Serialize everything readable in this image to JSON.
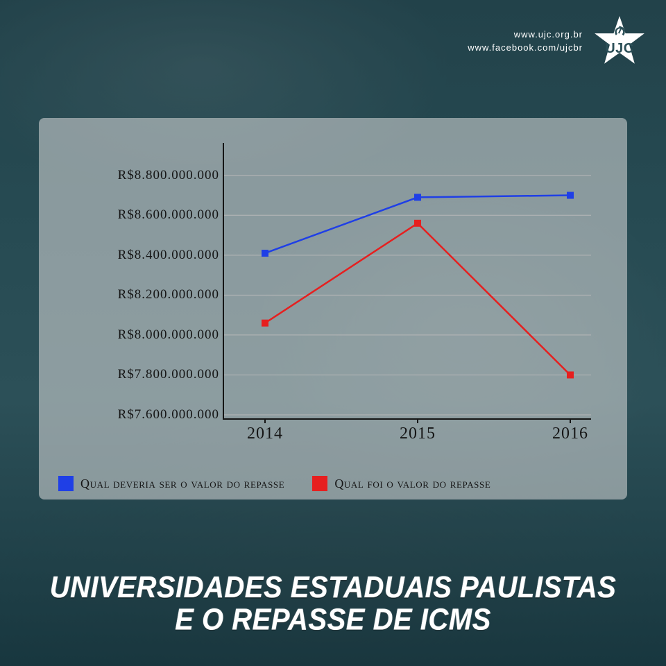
{
  "header": {
    "url1": "www.ujc.org.br",
    "url2": "www.facebook.com/ujcbr",
    "logo_text": "UJC",
    "logo_star_color": "#ffffff",
    "logo_symbol_color": "#2c5058"
  },
  "chart": {
    "type": "line",
    "plot_background": "rgba(220,220,220,0.55)",
    "axis_color": "#151515",
    "grid_color": "#b8b8b8",
    "label_color": "#151515",
    "tick_fontsize": 19,
    "xlabel_fontsize": 24,
    "marker_size": 10,
    "line_width": 2.5,
    "ymin": 7600000000,
    "ymax": 8900000000,
    "yticks": [
      {
        "v": 7600000000,
        "label": "R$7.600.000.000"
      },
      {
        "v": 7800000000,
        "label": "R$7.800.000.000"
      },
      {
        "v": 8000000000,
        "label": "R$8.000.000.000"
      },
      {
        "v": 8200000000,
        "label": "R$8.200.000.000"
      },
      {
        "v": 8400000000,
        "label": "R$8.400.000.000"
      },
      {
        "v": 8600000000,
        "label": "R$8.600.000.000"
      },
      {
        "v": 8800000000,
        "label": "R$8.800.000.000"
      }
    ],
    "categories": [
      "2014",
      "2015",
      "2016"
    ],
    "series": [
      {
        "name": "Qual deveria ser o valor do repasse",
        "color": "#1f3fe6",
        "values": [
          8410000000,
          8690000000,
          8700000000
        ]
      },
      {
        "name": "Qual foi o valor do repasse",
        "color": "#e61f1f",
        "values": [
          8060000000,
          8560000000,
          7800000000
        ]
      }
    ],
    "legend_swatch_size": 22,
    "legend_fontsize": 18
  },
  "title": {
    "line1": "Universidades Estaduais Paulistas",
    "line2": "e o repasse de ICMS",
    "fontsize": 40,
    "color": "#ffffff"
  },
  "background_color": "#2c5058"
}
